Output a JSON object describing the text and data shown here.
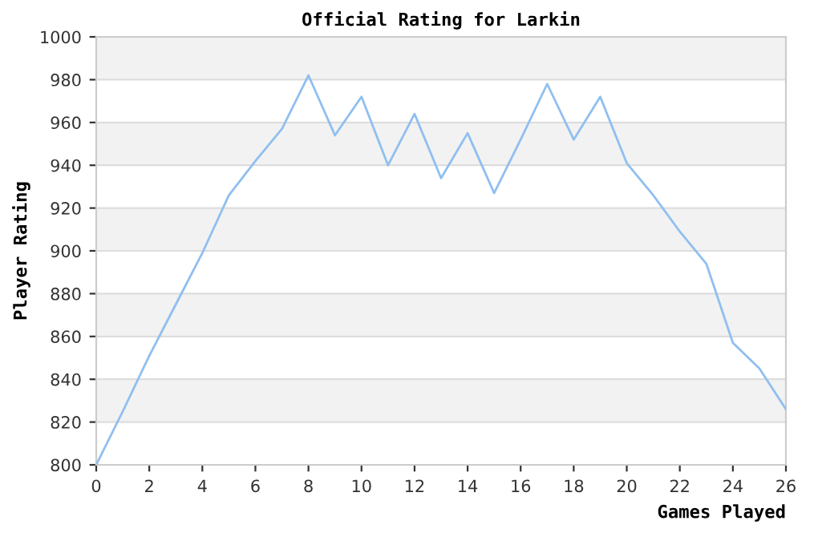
{
  "chart_data": {
    "type": "line",
    "title": "Official Rating for Larkin",
    "xlabel": "Games Played",
    "ylabel": "Player Rating",
    "x": [
      0,
      1,
      2,
      3,
      4,
      5,
      6,
      7,
      8,
      9,
      10,
      11,
      12,
      13,
      14,
      15,
      16,
      17,
      18,
      19,
      20,
      21,
      22,
      23,
      24,
      25,
      26
    ],
    "series": [
      {
        "color": "#8fbff0",
        "values": [
          800,
          825,
          851,
          875,
          899,
          926,
          942,
          957,
          982,
          954,
          972,
          940,
          964,
          934,
          955,
          927,
          952,
          978,
          952,
          972,
          941,
          926,
          909,
          894,
          857,
          845,
          826
        ]
      }
    ],
    "xlim": [
      0,
      26
    ],
    "xticks": [
      0,
      2,
      4,
      6,
      8,
      10,
      12,
      14,
      16,
      18,
      20,
      22,
      24,
      26
    ],
    "ylim": [
      800,
      1000
    ],
    "yticks": [
      800,
      820,
      840,
      860,
      880,
      900,
      920,
      940,
      960,
      980,
      1000
    ],
    "grid": "y",
    "marker": "none",
    "line_style": "solid",
    "bands": [
      {
        "axis": "y",
        "from": 820,
        "to": 840,
        "color": "#f2f2f2"
      },
      {
        "axis": "y",
        "from": 860,
        "to": 880,
        "color": "#f2f2f2"
      },
      {
        "axis": "y",
        "from": 900,
        "to": 920,
        "color": "#f2f2f2"
      },
      {
        "axis": "y",
        "from": 940,
        "to": 960,
        "color": "#f2f2f2"
      },
      {
        "axis": "y",
        "from": 980,
        "to": 1000,
        "color": "#f2f2f2"
      }
    ]
  }
}
